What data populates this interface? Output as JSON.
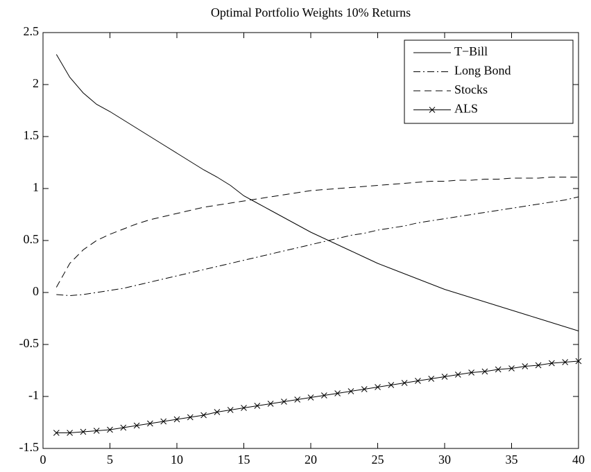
{
  "chart_data": {
    "type": "line",
    "title": "Optimal Portfolio Weights 10% Returns",
    "x": [
      1,
      2,
      3,
      4,
      5,
      6,
      7,
      8,
      9,
      10,
      11,
      12,
      13,
      14,
      15,
      16,
      17,
      18,
      19,
      20,
      21,
      22,
      23,
      24,
      25,
      26,
      27,
      28,
      29,
      30,
      31,
      32,
      33,
      34,
      35,
      36,
      37,
      38,
      39,
      40
    ],
    "series": [
      {
        "name": "T−Bill",
        "color": "#000000",
        "line_style": "solid",
        "values": [
          2.29,
          2.07,
          1.92,
          1.81,
          1.74,
          1.66,
          1.58,
          1.5,
          1.42,
          1.34,
          1.26,
          1.18,
          1.11,
          1.03,
          0.93,
          0.86,
          0.79,
          0.72,
          0.65,
          0.58,
          0.52,
          0.46,
          0.4,
          0.34,
          0.28,
          0.23,
          0.18,
          0.13,
          0.08,
          0.03,
          -0.01,
          -0.05,
          -0.09,
          -0.13,
          -0.17,
          -0.21,
          -0.25,
          -0.29,
          -0.33,
          -0.37
        ]
      },
      {
        "name": "Long Bond",
        "color": "#000000",
        "line_style": "dashdot",
        "values": [
          -0.02,
          -0.03,
          -0.02,
          0.0,
          0.02,
          0.04,
          0.07,
          0.1,
          0.13,
          0.16,
          0.19,
          0.22,
          0.25,
          0.28,
          0.31,
          0.34,
          0.37,
          0.4,
          0.43,
          0.46,
          0.49,
          0.52,
          0.55,
          0.57,
          0.6,
          0.62,
          0.64,
          0.67,
          0.69,
          0.71,
          0.73,
          0.75,
          0.77,
          0.79,
          0.81,
          0.83,
          0.85,
          0.87,
          0.89,
          0.92
        ]
      },
      {
        "name": "Stocks",
        "color": "#000000",
        "line_style": "dashed",
        "values": [
          0.05,
          0.28,
          0.41,
          0.5,
          0.56,
          0.61,
          0.66,
          0.7,
          0.73,
          0.76,
          0.79,
          0.82,
          0.84,
          0.86,
          0.88,
          0.9,
          0.92,
          0.94,
          0.96,
          0.98,
          0.99,
          1.0,
          1.01,
          1.02,
          1.03,
          1.04,
          1.05,
          1.06,
          1.07,
          1.07,
          1.08,
          1.08,
          1.09,
          1.09,
          1.1,
          1.1,
          1.1,
          1.11,
          1.11,
          1.11
        ]
      },
      {
        "name": "ALS",
        "color": "#000000",
        "line_style": "solid",
        "marker": "x",
        "values": [
          -1.35,
          -1.35,
          -1.34,
          -1.33,
          -1.32,
          -1.3,
          -1.28,
          -1.26,
          -1.24,
          -1.22,
          -1.2,
          -1.18,
          -1.15,
          -1.13,
          -1.11,
          -1.09,
          -1.07,
          -1.05,
          -1.03,
          -1.01,
          -0.99,
          -0.97,
          -0.95,
          -0.93,
          -0.91,
          -0.89,
          -0.87,
          -0.85,
          -0.83,
          -0.81,
          -0.79,
          -0.77,
          -0.76,
          -0.74,
          -0.73,
          -0.71,
          -0.7,
          -0.68,
          -0.67,
          -0.66
        ]
      }
    ],
    "xlim": [
      0,
      40
    ],
    "xticks": [
      0,
      5,
      10,
      15,
      20,
      25,
      30,
      35,
      40
    ],
    "ylim": [
      -1.5,
      2.5
    ],
    "yticks": [
      -1.5,
      -1,
      -0.5,
      0,
      0.5,
      1,
      1.5,
      2,
      2.5
    ],
    "grid": false,
    "legend": "upper right"
  }
}
